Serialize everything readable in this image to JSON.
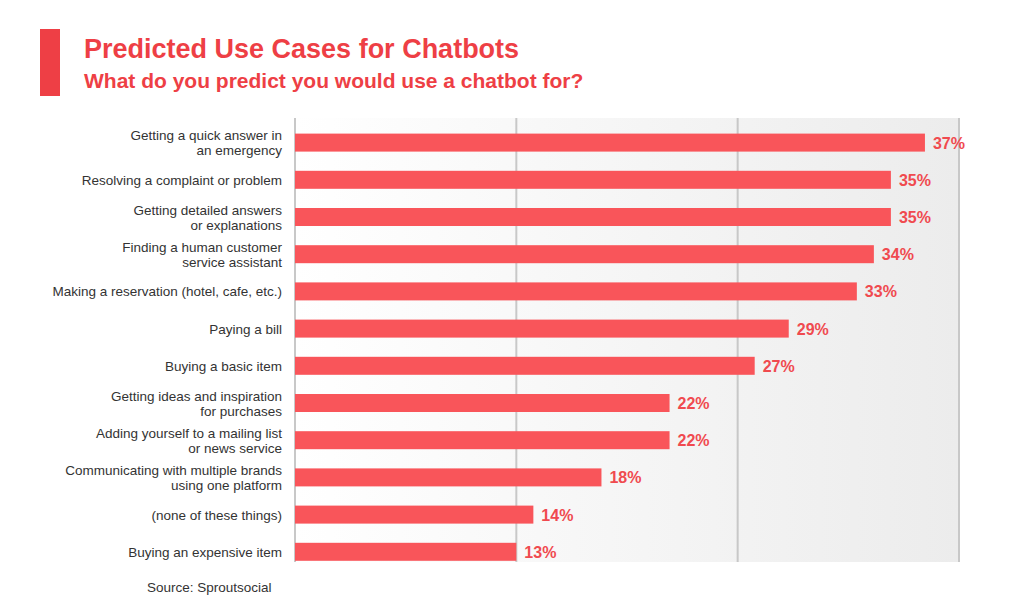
{
  "chart_data": {
    "type": "bar",
    "orientation": "horizontal",
    "title": "Predicted Use Cases for Chatbots",
    "subtitle": "What do you predict you would use a chatbot for?",
    "source": "Source: Sproutsocial",
    "categories": [
      "Getting a quick answer in\nan emergency",
      "Resolving a complaint or problem",
      "Getting detailed answers\nor explanations",
      "Finding a human customer\nservice assistant",
      "Making a reservation (hotel, cafe, etc.)",
      "Paying a bill",
      "Buying a basic item",
      "Getting ideas and inspiration\nfor purchases",
      "Adding yourself to a mailing list\nor news service",
      "Communicating with multiple brands\nusing one platform",
      "(none of these things)",
      "Buying an expensive item"
    ],
    "values": [
      37,
      35,
      35,
      34,
      33,
      29,
      27,
      22,
      22,
      18,
      14,
      13
    ],
    "value_labels": [
      "37%",
      "35%",
      "35%",
      "34%",
      "33%",
      "29%",
      "27%",
      "22%",
      "22%",
      "18%",
      "14%",
      "13%"
    ],
    "color": "#f9555a",
    "xlim": [
      0,
      39
    ],
    "xticks": [
      0,
      13,
      26,
      39
    ],
    "grid": true,
    "data_labels": true,
    "tick_labels": false
  }
}
